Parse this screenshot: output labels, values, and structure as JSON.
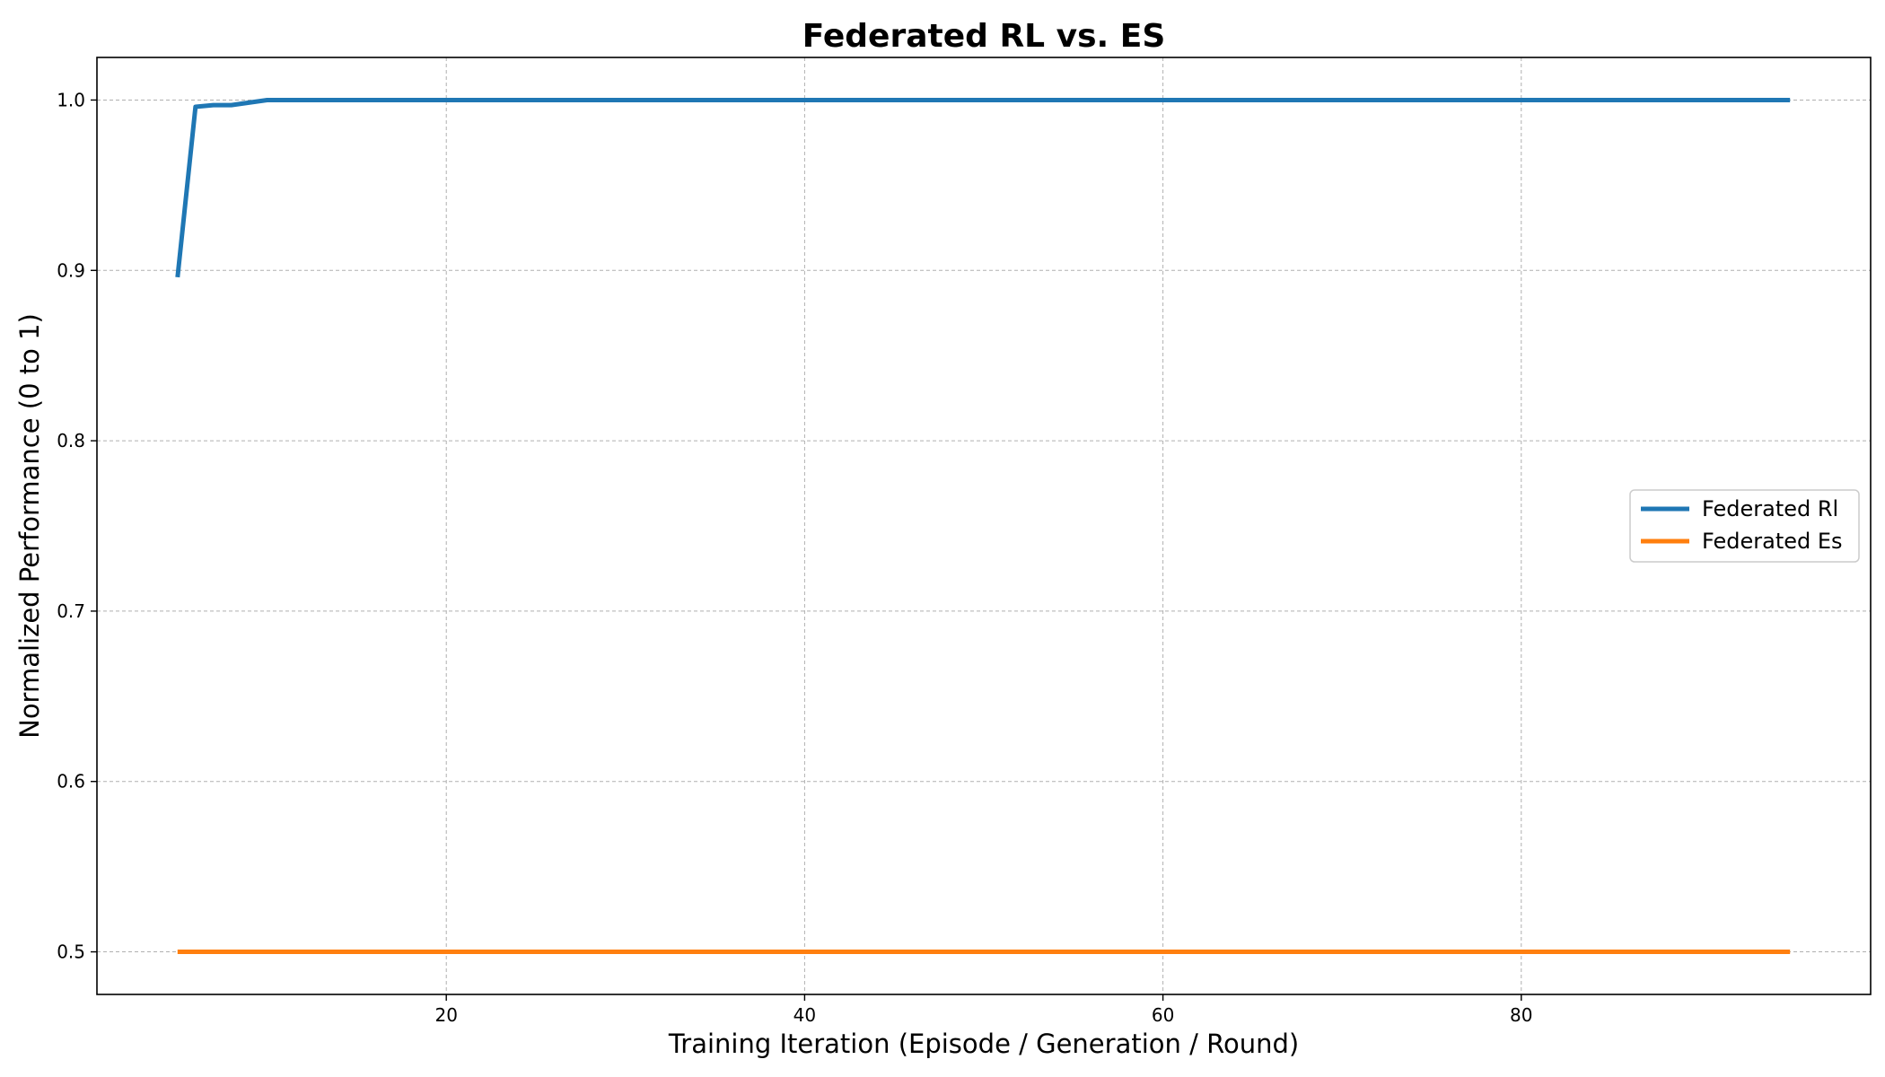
{
  "chart_data": {
    "type": "line",
    "title": "Federated RL vs. ES",
    "xlabel": "Training Iteration (Episode / Generation / Round)",
    "ylabel": "Normalized Performance (0 to 1)",
    "xlim": [
      0.5,
      99.5
    ],
    "ylim": [
      0.475,
      1.025
    ],
    "xticks": [
      20,
      40,
      60,
      80
    ],
    "yticks": [
      0.5,
      0.6,
      0.7,
      0.8,
      0.9,
      1.0
    ],
    "grid": true,
    "legend_position": "center-right",
    "series": [
      {
        "name": "Federated Rl",
        "color": "#1f77b4",
        "x": [
          5,
          6,
          7,
          8,
          10,
          15,
          20,
          30,
          40,
          50,
          60,
          70,
          80,
          90,
          95
        ],
        "y": [
          0.896,
          0.996,
          0.997,
          0.997,
          1.0,
          1.0,
          1.0,
          1.0,
          1.0,
          1.0,
          1.0,
          1.0,
          1.0,
          1.0,
          1.0
        ]
      },
      {
        "name": "Federated Es",
        "color": "#ff7f0e",
        "x": [
          5,
          95
        ],
        "y": [
          0.5,
          0.5
        ]
      }
    ]
  }
}
